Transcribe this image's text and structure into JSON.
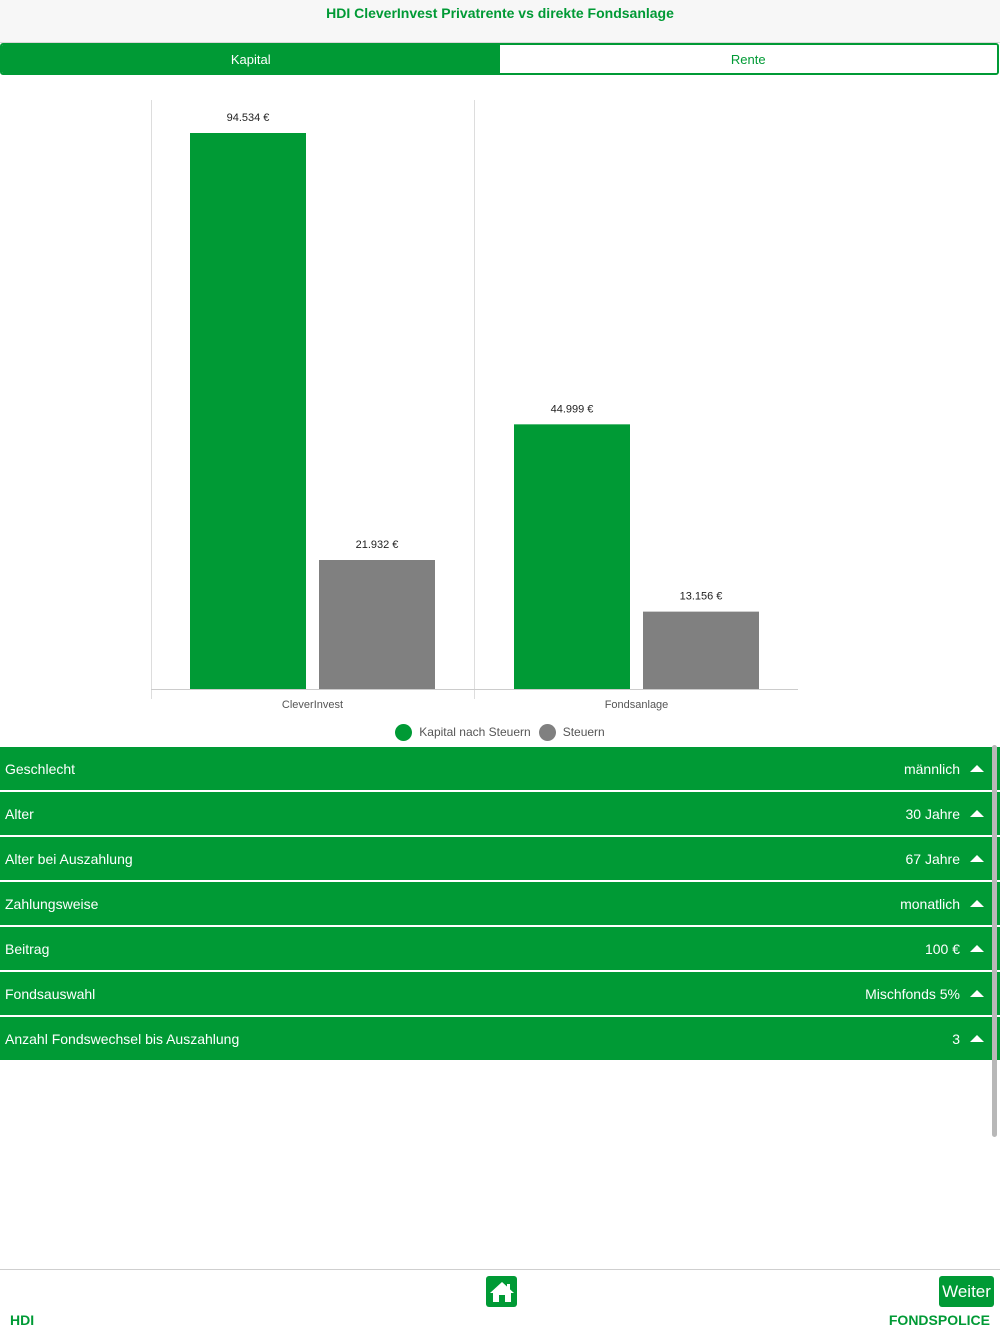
{
  "header": {
    "title": "HDI CleverInvest Privatrente vs direkte Fondsanlage"
  },
  "tabs": [
    {
      "label": "Kapital",
      "active": true
    },
    {
      "label": "Rente",
      "active": false
    }
  ],
  "chart_data": {
    "type": "bar",
    "categories": [
      "CleverInvest",
      "Fondsanlage"
    ],
    "series": [
      {
        "name": "Kapital nach Steuern",
        "values": [
          94534,
          44999
        ],
        "labels": [
          "94.534 €",
          "44.999 €"
        ],
        "color": "#009a35"
      },
      {
        "name": "Steuern",
        "values": [
          21932,
          13156
        ],
        "labels": [
          "21.932 €",
          "13.156 €"
        ],
        "color": "#808080"
      }
    ],
    "ylim": [
      0,
      100000
    ],
    "grid": false,
    "legend_position": "bottom"
  },
  "settings": [
    {
      "label": "Geschlecht",
      "value": "männlich"
    },
    {
      "label": "Alter",
      "value": "30 Jahre"
    },
    {
      "label": "Alter bei Auszahlung",
      "value": "67 Jahre"
    },
    {
      "label": "Zahlungsweise",
      "value": "monatlich"
    },
    {
      "label": "Beitrag",
      "value": "100 €"
    },
    {
      "label": "Fondsauswahl",
      "value": "Mischfonds 5%"
    },
    {
      "label": "Anzahl Fondswechsel bis Auszahlung",
      "value": "3"
    }
  ],
  "footer": {
    "left_brand": "HDI",
    "right_brand": "FONDSPOLICE",
    "next_label": "Weiter",
    "home_icon": "home-icon"
  },
  "colors": {
    "accent": "#009a35",
    "tax_gray": "#808080"
  }
}
